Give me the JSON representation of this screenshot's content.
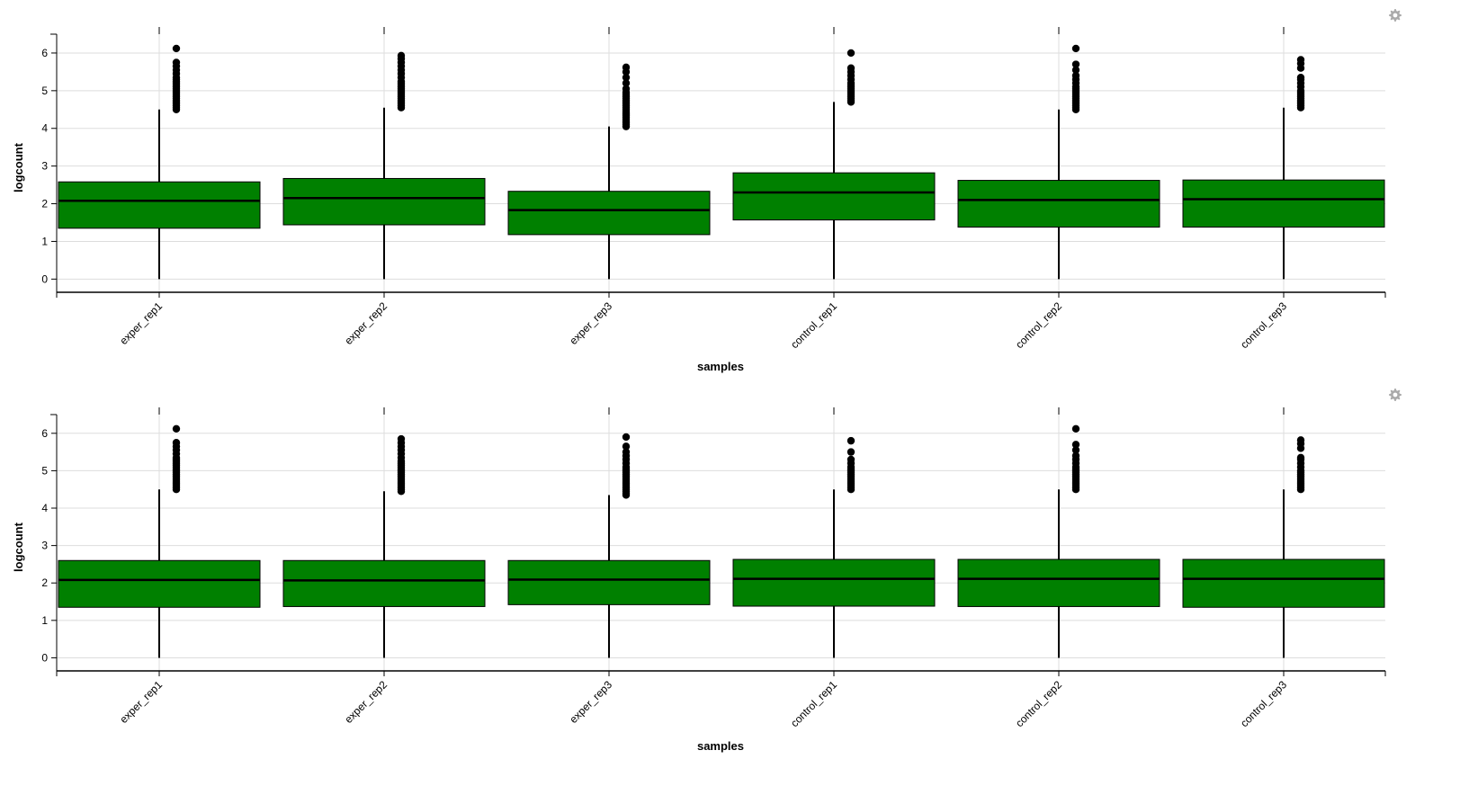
{
  "colors": {
    "box_fill": "#008000",
    "outline": "#000000",
    "grid": "#dddddd",
    "settings_icon": "#aaaaaa"
  },
  "chart_data": [
    {
      "type": "box",
      "xlabel": "samples",
      "ylabel": "logcount",
      "categories": [
        "exper_rep1",
        "exper_rep2",
        "exper_rep3",
        "control_rep1",
        "control_rep2",
        "control_rep3"
      ],
      "yticks": [
        0,
        1,
        2,
        3,
        4,
        5,
        6
      ],
      "ylim": [
        -0.35,
        6.5
      ],
      "grid": true,
      "settings_icon": "gear-icon",
      "boxes": [
        {
          "min": 0,
          "q1": 1.35,
          "median": 2.08,
          "q3": 2.58,
          "whisker_high": 4.5,
          "outliers": [
            4.5,
            4.55,
            4.6,
            4.65,
            4.7,
            4.75,
            4.8,
            4.85,
            4.9,
            4.95,
            5.0,
            5.05,
            5.1,
            5.15,
            5.2,
            5.25,
            5.3,
            5.35,
            5.45,
            5.55,
            5.65,
            5.75,
            6.12
          ]
        },
        {
          "min": 0,
          "q1": 1.44,
          "median": 2.15,
          "q3": 2.67,
          "whisker_high": 4.55,
          "outliers": [
            4.55,
            4.6,
            4.65,
            4.7,
            4.75,
            4.8,
            4.85,
            4.9,
            4.95,
            5.0,
            5.05,
            5.1,
            5.15,
            5.2,
            5.25,
            5.35,
            5.45,
            5.55,
            5.65,
            5.75,
            5.85,
            5.93
          ]
        },
        {
          "min": 0,
          "q1": 1.18,
          "median": 1.83,
          "q3": 2.33,
          "whisker_high": 4.05,
          "outliers": [
            4.05,
            4.1,
            4.15,
            4.2,
            4.25,
            4.3,
            4.35,
            4.4,
            4.45,
            4.5,
            4.55,
            4.6,
            4.65,
            4.7,
            4.75,
            4.8,
            4.85,
            4.9,
            4.95,
            5.05,
            5.2,
            5.35,
            5.5,
            5.62
          ]
        },
        {
          "min": 0,
          "q1": 1.57,
          "median": 2.3,
          "q3": 2.82,
          "whisker_high": 4.7,
          "outliers": [
            4.7,
            4.75,
            4.8,
            4.85,
            4.9,
            4.95,
            5.0,
            5.05,
            5.1,
            5.15,
            5.2,
            5.3,
            5.4,
            5.5,
            5.6,
            6.0
          ]
        },
        {
          "min": 0,
          "q1": 1.38,
          "median": 2.1,
          "q3": 2.62,
          "whisker_high": 4.5,
          "outliers": [
            4.5,
            4.55,
            4.6,
            4.65,
            4.7,
            4.75,
            4.8,
            4.85,
            4.9,
            4.95,
            5.0,
            5.05,
            5.1,
            5.2,
            5.3,
            5.4,
            5.55,
            5.7,
            6.12
          ]
        },
        {
          "min": 0,
          "q1": 1.38,
          "median": 2.12,
          "q3": 2.63,
          "whisker_high": 4.55,
          "outliers": [
            4.55,
            4.6,
            4.65,
            4.7,
            4.75,
            4.8,
            4.85,
            4.9,
            4.95,
            5.0,
            5.1,
            5.2,
            5.3,
            5.35,
            5.6,
            5.72,
            5.82
          ]
        }
      ]
    },
    {
      "type": "box",
      "xlabel": "samples",
      "ylabel": "logcount",
      "categories": [
        "exper_rep1",
        "exper_rep2",
        "exper_rep3",
        "control_rep1",
        "control_rep2",
        "control_rep3"
      ],
      "yticks": [
        0,
        1,
        2,
        3,
        4,
        5,
        6
      ],
      "ylim": [
        -0.35,
        6.5
      ],
      "grid": true,
      "settings_icon": "gear-icon",
      "boxes": [
        {
          "min": 0,
          "q1": 1.35,
          "median": 2.08,
          "q3": 2.6,
          "whisker_high": 4.5,
          "outliers": [
            4.5,
            4.55,
            4.6,
            4.65,
            4.7,
            4.75,
            4.8,
            4.85,
            4.9,
            4.95,
            5.0,
            5.05,
            5.1,
            5.15,
            5.2,
            5.25,
            5.3,
            5.35,
            5.45,
            5.55,
            5.65,
            5.75,
            6.12
          ]
        },
        {
          "min": 0,
          "q1": 1.37,
          "median": 2.07,
          "q3": 2.6,
          "whisker_high": 4.45,
          "outliers": [
            4.45,
            4.5,
            4.55,
            4.6,
            4.65,
            4.7,
            4.75,
            4.8,
            4.85,
            4.9,
            4.95,
            5.0,
            5.05,
            5.1,
            5.15,
            5.2,
            5.25,
            5.35,
            5.45,
            5.55,
            5.65,
            5.75,
            5.85
          ]
        },
        {
          "min": 0,
          "q1": 1.42,
          "median": 2.09,
          "q3": 2.6,
          "whisker_high": 4.35,
          "outliers": [
            4.35,
            4.4,
            4.45,
            4.5,
            4.55,
            4.6,
            4.65,
            4.7,
            4.75,
            4.8,
            4.85,
            4.9,
            4.95,
            5.0,
            5.05,
            5.1,
            5.2,
            5.3,
            5.4,
            5.5,
            5.65,
            5.9
          ]
        },
        {
          "min": 0,
          "q1": 1.38,
          "median": 2.11,
          "q3": 2.63,
          "whisker_high": 4.5,
          "outliers": [
            4.5,
            4.55,
            4.6,
            4.65,
            4.7,
            4.75,
            4.8,
            4.85,
            4.9,
            4.95,
            5.0,
            5.05,
            5.1,
            5.2,
            5.3,
            5.5,
            5.8
          ]
        },
        {
          "min": 0,
          "q1": 1.37,
          "median": 2.11,
          "q3": 2.63,
          "whisker_high": 4.5,
          "outliers": [
            4.5,
            4.55,
            4.6,
            4.65,
            4.7,
            4.75,
            4.8,
            4.85,
            4.9,
            4.95,
            5.0,
            5.05,
            5.1,
            5.2,
            5.3,
            5.4,
            5.55,
            5.7,
            6.12
          ]
        },
        {
          "min": 0,
          "q1": 1.35,
          "median": 2.11,
          "q3": 2.63,
          "whisker_high": 4.5,
          "outliers": [
            4.5,
            4.55,
            4.6,
            4.65,
            4.7,
            4.75,
            4.8,
            4.85,
            4.9,
            4.95,
            5.0,
            5.1,
            5.2,
            5.3,
            5.35,
            5.6,
            5.72,
            5.82
          ]
        }
      ]
    }
  ]
}
